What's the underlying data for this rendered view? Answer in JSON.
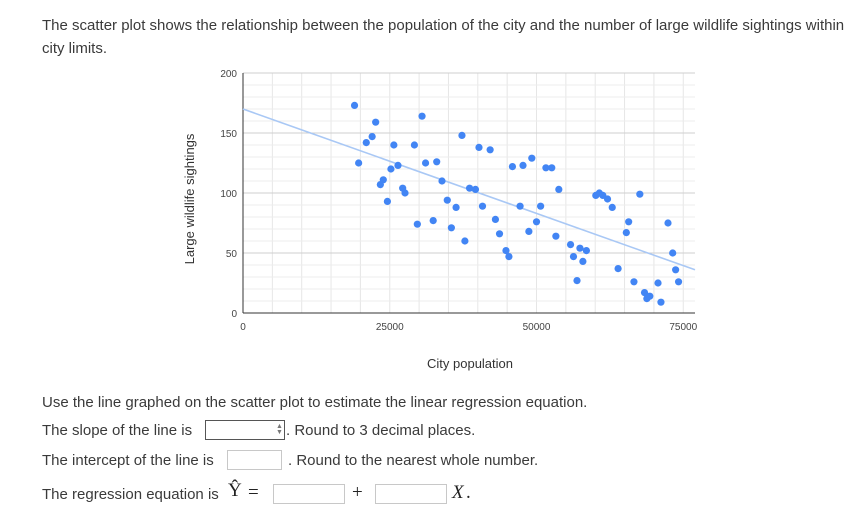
{
  "intro_text": "The scatter plot shows the relationship between the population of the city and the number of large wildlife sightings within city limits.",
  "chart_data": {
    "type": "scatter",
    "xlabel": "City population",
    "ylabel": "Large wildlife sightings",
    "xlim": [
      0,
      77000
    ],
    "ylim": [
      0,
      200
    ],
    "x_ticks": [
      "0",
      "25000",
      "50000",
      "75000"
    ],
    "x_tick_values": [
      0,
      25000,
      50000,
      75000
    ],
    "y_ticks": [
      "0",
      "50",
      "100",
      "150",
      "200"
    ],
    "y_tick_values": [
      0,
      50,
      100,
      150,
      200
    ],
    "grid": true,
    "point_color": "#4285f4",
    "line_color": "#a9c8f5",
    "trend_line": {
      "x": [
        0,
        77000
      ],
      "y": [
        170,
        36
      ]
    },
    "points": [
      [
        19000,
        173
      ],
      [
        19700,
        125
      ],
      [
        21000,
        142
      ],
      [
        22000,
        147
      ],
      [
        22600,
        159
      ],
      [
        23400,
        107
      ],
      [
        23900,
        111
      ],
      [
        24600,
        93
      ],
      [
        25200,
        120
      ],
      [
        25700,
        140
      ],
      [
        26400,
        123
      ],
      [
        27200,
        104
      ],
      [
        27600,
        100
      ],
      [
        29200,
        140
      ],
      [
        29700,
        74
      ],
      [
        30500,
        164
      ],
      [
        31100,
        125
      ],
      [
        32400,
        77
      ],
      [
        33000,
        126
      ],
      [
        33900,
        110
      ],
      [
        34800,
        94
      ],
      [
        35500,
        71
      ],
      [
        36300,
        88
      ],
      [
        37300,
        148
      ],
      [
        37800,
        60
      ],
      [
        38600,
        104
      ],
      [
        39600,
        103
      ],
      [
        40200,
        138
      ],
      [
        40800,
        89
      ],
      [
        42100,
        136
      ],
      [
        43000,
        78
      ],
      [
        43700,
        66
      ],
      [
        44800,
        52
      ],
      [
        45300,
        47
      ],
      [
        45900,
        122
      ],
      [
        47200,
        89
      ],
      [
        47700,
        123
      ],
      [
        48700,
        68
      ],
      [
        49200,
        129
      ],
      [
        50000,
        76
      ],
      [
        50700,
        89
      ],
      [
        51600,
        121
      ],
      [
        52600,
        121
      ],
      [
        53300,
        64
      ],
      [
        53800,
        103
      ],
      [
        55800,
        57
      ],
      [
        56300,
        47
      ],
      [
        56900,
        27
      ],
      [
        57400,
        54
      ],
      [
        57900,
        43
      ],
      [
        58500,
        52
      ],
      [
        60100,
        98
      ],
      [
        60700,
        100
      ],
      [
        61300,
        98
      ],
      [
        62100,
        95
      ],
      [
        62900,
        88
      ],
      [
        63900,
        37
      ],
      [
        65300,
        67
      ],
      [
        65700,
        76
      ],
      [
        66600,
        26
      ],
      [
        67600,
        99
      ],
      [
        68400,
        17
      ],
      [
        68800,
        12
      ],
      [
        69300,
        14
      ],
      [
        70700,
        25
      ],
      [
        71200,
        9
      ],
      [
        72400,
        75
      ],
      [
        73200,
        50
      ],
      [
        73700,
        36
      ],
      [
        74200,
        26
      ]
    ]
  },
  "question": {
    "instruction": "Use the line graphed on the scatter plot to estimate the linear regression equation.",
    "slope_label": "The slope of the line is",
    "slope_value": "",
    "slope_hint": ". Round to 3 decimal places.",
    "intercept_label": "The intercept of the line is",
    "intercept_value": "",
    "intercept_hint": ". Round to the nearest whole number.",
    "equation_label": "The regression equation is",
    "yhat": "Ŷ",
    "equals": "=",
    "plus": "+",
    "equation_intercept_value": "",
    "equation_slope_value": "",
    "x_var": "X",
    "period": "."
  }
}
